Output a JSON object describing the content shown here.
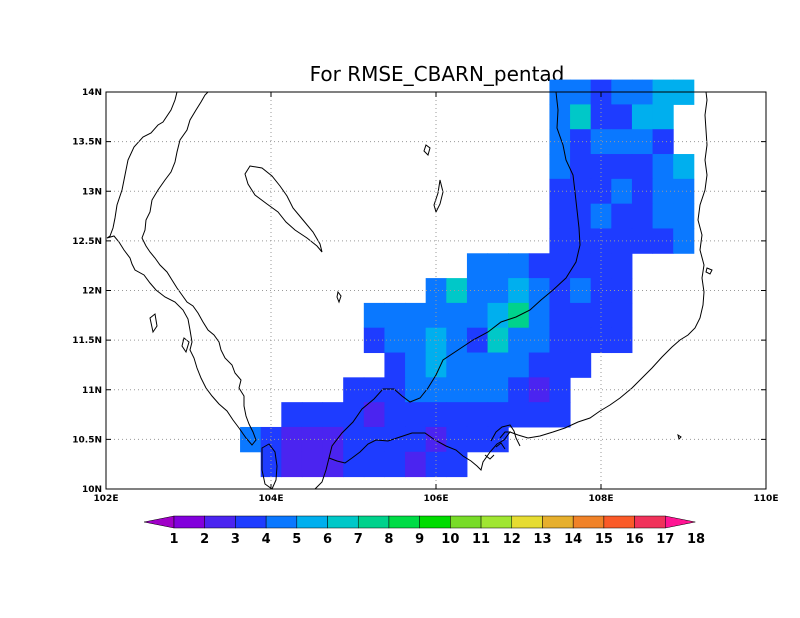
{
  "chart_data": {
    "type": "heatmap",
    "title": "For RMSE_CBARN_pentad",
    "grid": true,
    "xlim": [
      102,
      110
    ],
    "ylim": [
      10,
      14
    ],
    "x_ticks": [
      {
        "value": 102,
        "label": "102E"
      },
      {
        "value": 104,
        "label": "104E"
      },
      {
        "value": 106,
        "label": "106E"
      },
      {
        "value": 108,
        "label": "108E"
      },
      {
        "value": 110,
        "label": "110E"
      }
    ],
    "y_ticks": [
      {
        "value": 10,
        "label": "10N"
      },
      {
        "value": 10.5,
        "label": "10.5N"
      },
      {
        "value": 11,
        "label": "11N"
      },
      {
        "value": 11.5,
        "label": "11.5N"
      },
      {
        "value": 12,
        "label": "12N"
      },
      {
        "value": 12.5,
        "label": "12.5N"
      },
      {
        "value": 13,
        "label": "13N"
      },
      {
        "value": 13.5,
        "label": "13.5N"
      },
      {
        "value": 14,
        "label": "14N"
      }
    ],
    "cell_size_deg": 0.25,
    "colorbar": {
      "labels": [
        "1",
        "2",
        "3",
        "4",
        "5",
        "6",
        "7",
        "8",
        "9",
        "10",
        "11",
        "12",
        "13",
        "14",
        "15",
        "16",
        "17",
        "18"
      ],
      "colors": [
        "#a000c8",
        "#8200dc",
        "#4b24f0",
        "#1e3cff",
        "#0a78ff",
        "#00afee",
        "#00c8c8",
        "#00d28c",
        "#00dc46",
        "#00dc00",
        "#78dc28",
        "#a0e632",
        "#e6dc32",
        "#e6af2d",
        "#f08228",
        "#fa5a28",
        "#f0325a",
        "#ff1493"
      ]
    },
    "rows": [
      {
        "lat": 14.0,
        "lon_start": 107.5,
        "values": [
          5,
          5,
          4,
          5,
          5,
          6,
          6
        ]
      },
      {
        "lat": 13.75,
        "lon_start": 107.5,
        "values": [
          5,
          7,
          4,
          4,
          6,
          6
        ]
      },
      {
        "lat": 13.5,
        "lon_start": 107.5,
        "values": [
          5,
          4,
          5,
          5,
          5,
          4
        ]
      },
      {
        "lat": 13.25,
        "lon_start": 107.5,
        "values": [
          5,
          4,
          4,
          4,
          4,
          5,
          6
        ]
      },
      {
        "lat": 13.0,
        "lon_start": 107.5,
        "values": [
          4,
          4,
          4,
          5,
          4,
          5,
          5
        ]
      },
      {
        "lat": 12.75,
        "lon_start": 107.5,
        "values": [
          4,
          4,
          5,
          4,
          4,
          5,
          5
        ]
      },
      {
        "lat": 12.5,
        "lon_start": 107.5,
        "values": [
          4,
          4,
          4,
          4,
          4,
          4,
          5
        ]
      },
      {
        "lat": 12.25,
        "lon_start": 106.5,
        "values": [
          5,
          5,
          5,
          4,
          4,
          4,
          4,
          4
        ]
      },
      {
        "lat": 12.0,
        "lon_start": 106.0,
        "values": [
          5,
          7,
          5,
          5,
          6,
          5,
          4,
          5,
          4,
          4
        ]
      },
      {
        "lat": 11.75,
        "lon_start": 105.25,
        "values": [
          5,
          5,
          5,
          5,
          5,
          5,
          6,
          8,
          5,
          4,
          4,
          4,
          4
        ]
      },
      {
        "lat": 11.5,
        "lon_start": 105.25,
        "values": [
          4,
          5,
          5,
          6,
          5,
          4,
          7,
          5,
          5,
          4,
          4,
          4,
          4
        ]
      },
      {
        "lat": 11.25,
        "lon_start": 105.5,
        "values": [
          4,
          5,
          6,
          5,
          5,
          5,
          5,
          4,
          4,
          4
        ]
      },
      {
        "lat": 11.0,
        "lon_start": 105.0,
        "values": [
          4,
          4,
          4,
          5,
          5,
          5,
          5,
          5,
          4,
          3,
          4
        ]
      },
      {
        "lat": 10.75,
        "lon_start": 104.25,
        "values": [
          4,
          4,
          4,
          4,
          3,
          4,
          4,
          4,
          4,
          4,
          4,
          4,
          4,
          4
        ]
      },
      {
        "lat": 10.5,
        "lon_start": 103.75,
        "values": [
          5,
          4,
          3,
          3,
          3,
          4,
          4,
          4,
          4,
          3,
          4,
          4,
          4
        ]
      },
      {
        "lat": 10.25,
        "lon_start": 104.0,
        "values": [
          4,
          3,
          3,
          3,
          4,
          4,
          4,
          3,
          4,
          4
        ]
      }
    ]
  }
}
